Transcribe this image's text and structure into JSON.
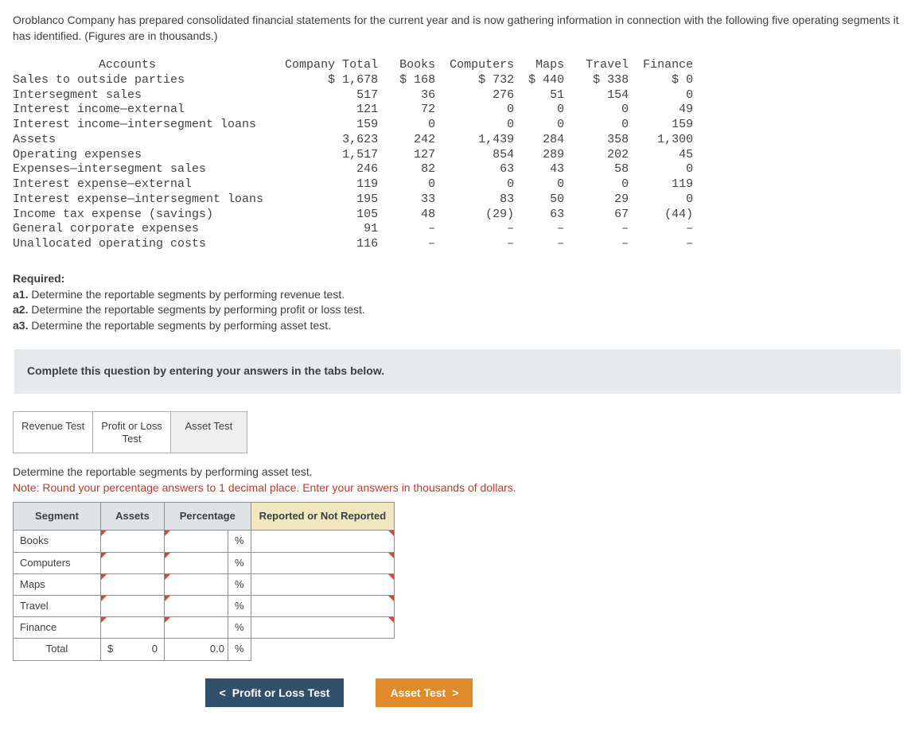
{
  "intro": "Oroblanco Company has prepared consolidated financial statements for the current year and is now gathering information in connection with the following five operating segments it has identified. (Figures are in thousands.)",
  "financials": {
    "headers": [
      "Accounts",
      "Company Total",
      "Books",
      "Computers",
      "Maps",
      "Travel",
      "Finance"
    ],
    "rows": [
      {
        "label": "Sales to outside parties",
        "vals": [
          "$ 1,678",
          "$ 168",
          "$ 732",
          "$ 440",
          "$ 338",
          "$ 0"
        ]
      },
      {
        "label": "Intersegment sales",
        "vals": [
          "517",
          "36",
          "276",
          "51",
          "154",
          "0"
        ]
      },
      {
        "label": "Interest income—external",
        "vals": [
          "121",
          "72",
          "0",
          "0",
          "0",
          "49"
        ]
      },
      {
        "label": "Interest income—intersegment loans",
        "vals": [
          "159",
          "0",
          "0",
          "0",
          "0",
          "159"
        ]
      },
      {
        "label": "Assets",
        "vals": [
          "3,623",
          "242",
          "1,439",
          "284",
          "358",
          "1,300"
        ]
      },
      {
        "label": "Operating expenses",
        "vals": [
          "1,517",
          "127",
          "854",
          "289",
          "202",
          "45"
        ]
      },
      {
        "label": "Expenses—intersegment sales",
        "vals": [
          "246",
          "82",
          "63",
          "43",
          "58",
          "0"
        ]
      },
      {
        "label": "Interest expense—external",
        "vals": [
          "119",
          "0",
          "0",
          "0",
          "0",
          "119"
        ]
      },
      {
        "label": "Interest expense—intersegment loans",
        "vals": [
          "195",
          "33",
          "83",
          "50",
          "29",
          "0"
        ]
      },
      {
        "label": "Income tax expense (savings)",
        "vals": [
          "105",
          "48",
          "(29)",
          "63",
          "67",
          "(44)"
        ]
      },
      {
        "label": "General corporate expenses",
        "vals": [
          "91",
          "–",
          "–",
          "–",
          "–",
          "–"
        ]
      },
      {
        "label": "Unallocated operating costs",
        "vals": [
          "116",
          "–",
          "–",
          "–",
          "–",
          "–"
        ]
      }
    ]
  },
  "required": {
    "heading": "Required:",
    "items": [
      {
        "key": "a1.",
        "text": "Determine the reportable segments by performing revenue test."
      },
      {
        "key": "a2.",
        "text": "Determine the reportable segments by performing profit or loss test."
      },
      {
        "key": "a3.",
        "text": "Determine the reportable segments by performing asset test."
      }
    ]
  },
  "instruction": "Complete this question by entering your answers in the tabs below.",
  "tabs": {
    "revenue": "Revenue Test",
    "profitloss": "Profit or Loss\nTest",
    "asset": "Asset Test"
  },
  "prompt": {
    "line1": "Determine the reportable segments by performing asset test.",
    "note": "Note: Round your percentage answers to 1 decimal place. Enter your answers in thousands of dollars."
  },
  "answer": {
    "headers": {
      "segment": "Segment",
      "assets": "Assets",
      "percentage": "Percentage",
      "reported": "Reported or Not Reported"
    },
    "rows": [
      "Books",
      "Computers",
      "Maps",
      "Travel",
      "Finance"
    ],
    "unit": "%",
    "total_label": "Total",
    "total_currency": "$",
    "total_assets": "0",
    "total_percentage": "0.0"
  },
  "nav": {
    "prev_chev": "<",
    "prev": "Profit or Loss Test",
    "next": "Asset Test",
    "next_chev": ">"
  },
  "colors": {
    "text": "#3a3f44",
    "note": "#c0392b",
    "header_bg": "#dfe3e6",
    "reported_bg": "#f3e7c0",
    "prev_btn": "#32506c",
    "next_btn": "#e08a2c",
    "indicator": "#d24a37"
  }
}
